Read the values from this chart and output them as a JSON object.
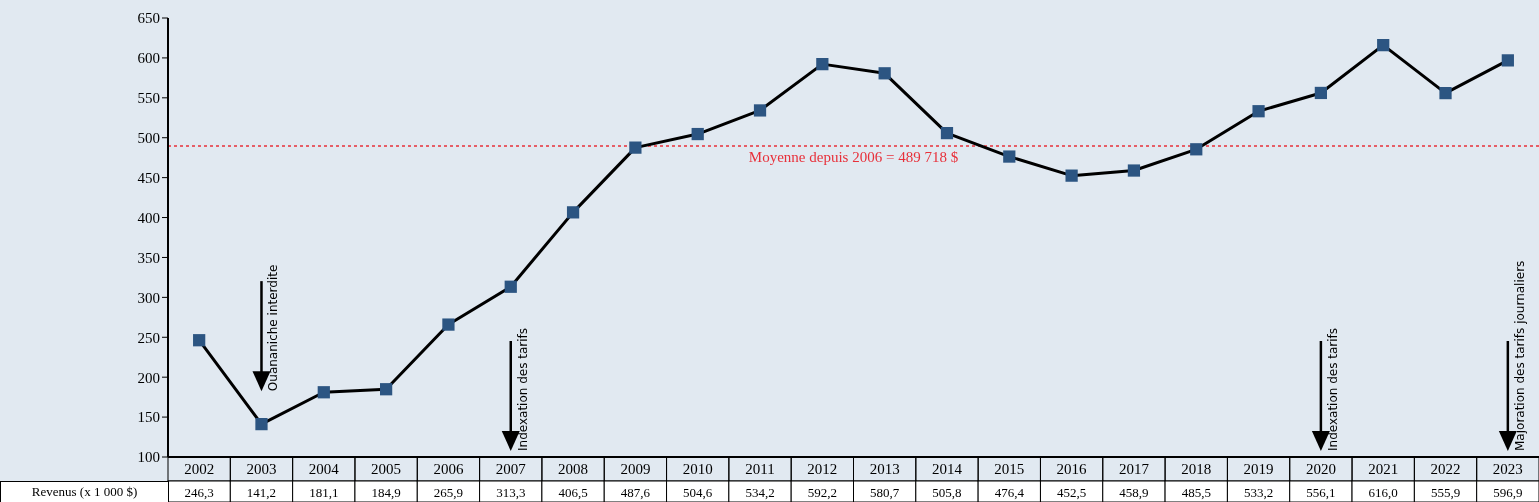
{
  "chart_data": {
    "type": "line",
    "categories": [
      "2002",
      "2003",
      "2004",
      "2005",
      "2006",
      "2007",
      "2008",
      "2009",
      "2010",
      "2011",
      "2012",
      "2013",
      "2014",
      "2015",
      "2016",
      "2017",
      "2018",
      "2019",
      "2020",
      "2021",
      "2022",
      "2023"
    ],
    "series": [
      {
        "name": "Revenus (x 1 000 $)",
        "color": "#000000",
        "values": [
          246.3,
          141.2,
          181.1,
          184.9,
          265.9,
          313.3,
          406.5,
          487.6,
          504.6,
          534.2,
          592.2,
          580.7,
          505.8,
          476.4,
          452.5,
          458.9,
          485.5,
          533.2,
          556.1,
          616.0,
          555.9,
          596.9
        ],
        "value_labels": [
          "246,3",
          "141,2",
          "181,1",
          "184,9",
          "265,9",
          "313,3",
          "406,5",
          "487,6",
          "504,6",
          "534,2",
          "592,2",
          "580,7",
          "505,8",
          "476,4",
          "452,5",
          "458,9",
          "485,5",
          "533,2",
          "556,1",
          "616,0",
          "555,9",
          "596,9"
        ]
      }
    ],
    "marker": "square",
    "ylim": [
      100,
      650
    ],
    "yticks": [
      100,
      150,
      200,
      250,
      300,
      350,
      400,
      450,
      500,
      550,
      600,
      650
    ],
    "legend": "bottom left",
    "ref_lines": [
      {
        "axis": "y",
        "value": 489.718,
        "label": "Moyenne depuis 2006 = 489 718 $",
        "color": "#e8303a",
        "line_style": "dotted"
      }
    ],
    "annotations": [
      "Ouananiche interdite",
      "Indexation des tarifs",
      "Indexation des tarifs",
      "Majoration des tarifs journaliers"
    ]
  }
}
